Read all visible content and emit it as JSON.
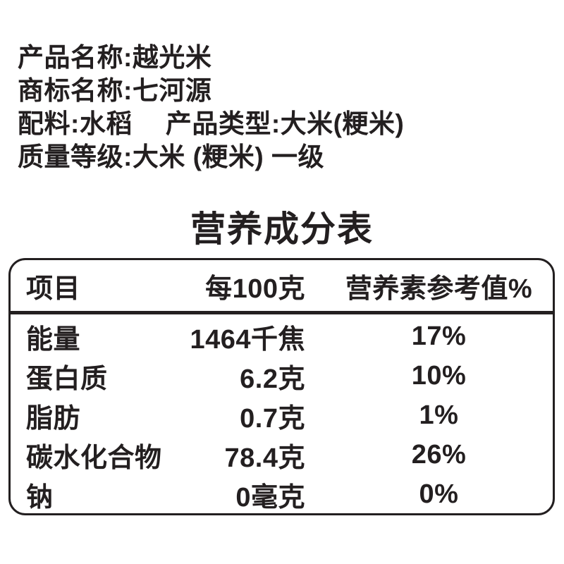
{
  "colors": {
    "text": "#231f20",
    "background": "#ffffff"
  },
  "product_info": {
    "name_line": "产品名称:越光米",
    "brand_line": "商标名称:七河源",
    "ingredients_label": "配料:水稻",
    "type_label": "产品类型:大米(粳米)",
    "grade_line": "质量等级:大米 (粳米) 一级"
  },
  "nutrition": {
    "title": "营养成分表",
    "columns": {
      "item": "项目",
      "per_100g": "每100克",
      "nrv": "营养素参考值%"
    },
    "rows": [
      {
        "item": "能量",
        "amount": "1464千焦",
        "nrv": "17%"
      },
      {
        "item": "蛋白质",
        "amount": "6.2克",
        "nrv": "10%"
      },
      {
        "item": "脂肪",
        "amount": "0.7克",
        "nrv": "1%"
      },
      {
        "item": "碳水化合物",
        "amount": "78.4克",
        "nrv": "26%"
      },
      {
        "item": "钠",
        "amount": "0毫克",
        "nrv": "0%"
      }
    ]
  }
}
